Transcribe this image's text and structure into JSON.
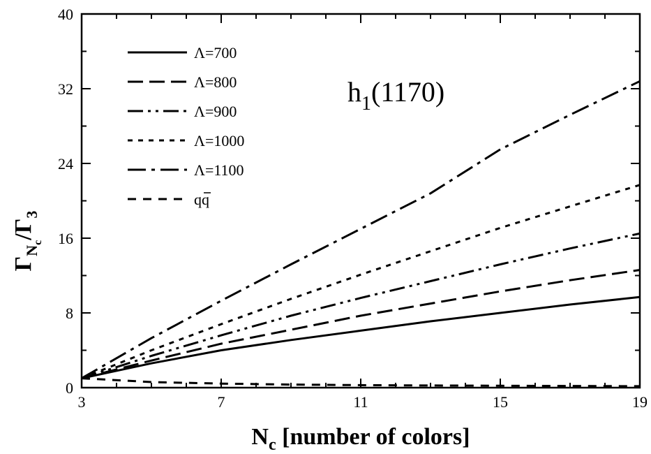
{
  "chart_data": {
    "type": "line",
    "annotation": {
      "main": "h",
      "sub": "1",
      "suffix": "(1170)"
    },
    "xlabel": {
      "main": "N",
      "sub": "c",
      "suffix": " [number of colors]"
    },
    "ylabel": {
      "gamma1": "Γ",
      "sub1": "N",
      "subsub": "c",
      "slash": "/",
      "gamma2": "Γ",
      "sub2": "3"
    },
    "xlim": [
      3,
      19
    ],
    "ylim": [
      0,
      40
    ],
    "xticks": [
      "3",
      "7",
      "11",
      "15",
      "19"
    ],
    "yticks": [
      "0",
      "8",
      "16",
      "24",
      "32",
      "40"
    ],
    "legend_position": "top-left",
    "grid": false,
    "x": [
      3,
      5,
      7,
      9,
      11,
      13,
      15,
      17,
      19
    ],
    "series": [
      {
        "name": "Λ=700",
        "style": "solid",
        "values": [
          1.0,
          2.6,
          4.0,
          5.1,
          6.1,
          7.1,
          8.0,
          8.9,
          9.7
        ]
      },
      {
        "name": "Λ=800",
        "style": "dash",
        "values": [
          1.0,
          2.9,
          4.7,
          6.2,
          7.7,
          9.0,
          10.3,
          11.5,
          12.6
        ]
      },
      {
        "name": "Λ=900",
        "style": "dashdotdot",
        "values": [
          1.0,
          3.4,
          5.6,
          7.7,
          9.6,
          11.4,
          13.2,
          14.9,
          16.5
        ]
      },
      {
        "name": "Λ=1000",
        "style": "dot",
        "values": [
          1.0,
          4.0,
          6.8,
          9.5,
          12.1,
          14.6,
          17.1,
          19.4,
          21.7
        ]
      },
      {
        "name": "Λ=1100",
        "style": "dashdot",
        "values": [
          1.0,
          5.3,
          9.3,
          13.2,
          17.0,
          20.8,
          25.5,
          29.2,
          32.8
        ]
      },
      {
        "name": "qq̄",
        "name_parts": {
          "base": "q",
          "over": "q"
        },
        "style": "shortdash",
        "values": [
          1.0,
          0.6,
          0.43,
          0.33,
          0.27,
          0.23,
          0.2,
          0.18,
          0.16
        ]
      }
    ]
  }
}
